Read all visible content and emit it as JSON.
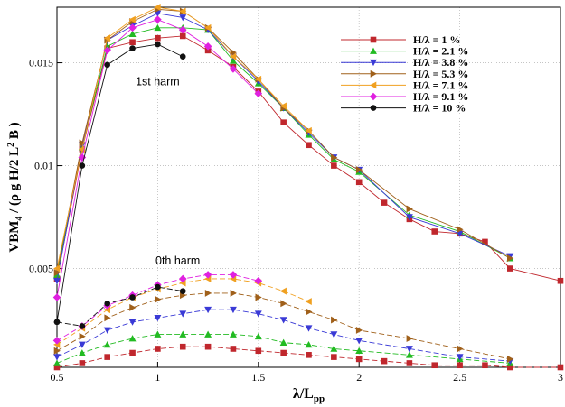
{
  "chart_data": {
    "type": "line",
    "xlabel": {
      "main": "λ/L",
      "sub": "pp"
    },
    "ylabel": {
      "a": "VBM",
      "a_sub": "4",
      "b": " / (ρ g H/2 L",
      "b_sup": "2",
      "c": " B )"
    },
    "xlim": [
      0.5,
      3
    ],
    "ylim": [
      0.0002,
      0.0177
    ],
    "x_ticks": [
      0.5,
      1,
      1.5,
      2,
      2.5,
      3
    ],
    "x_tick_labels": [
      "0.5",
      "1",
      "1.5",
      "2",
      "2.5",
      "3"
    ],
    "y_ticks": [
      0.005,
      0.01,
      0.015
    ],
    "y_tick_labels": [
      "0.005",
      "0.01",
      "0.015"
    ],
    "grid": true,
    "legend_position": "top-right",
    "annotations": [
      {
        "text": "1st harm",
        "x": 1.0,
        "y": 0.0139
      },
      {
        "text": "0th harm",
        "x": 1.1,
        "y": 0.0052
      }
    ],
    "series": [
      {
        "name": "H/λ = 1 %",
        "color": "#c0272d",
        "marker": "square",
        "first_harm": {
          "x": [
            0.5,
            0.625,
            0.75,
            0.875,
            1.0,
            1.125,
            1.25,
            1.375,
            1.5,
            1.625,
            1.75,
            1.875,
            2.0,
            2.125,
            2.25,
            2.375,
            2.5,
            2.625,
            2.75,
            3.0
          ],
          "y": [
            0.0045,
            0.0108,
            0.0157,
            0.016,
            0.0162,
            0.0163,
            0.0156,
            0.0148,
            0.0136,
            0.0121,
            0.011,
            0.01,
            0.0092,
            0.0082,
            0.0074,
            0.0068,
            0.0067,
            0.0063,
            0.005,
            0.0044
          ]
        },
        "zeroth_harm": {
          "x": [
            0.5,
            0.625,
            0.75,
            0.875,
            1.0,
            1.125,
            1.25,
            1.375,
            1.5,
            1.625,
            1.75,
            1.875,
            2.0,
            2.125,
            2.25,
            2.375,
            2.5,
            2.625,
            2.75,
            3.0
          ],
          "y": [
            0.0002,
            0.0004,
            0.0007,
            0.0009,
            0.0011,
            0.0012,
            0.0012,
            0.0011,
            0.001,
            0.0009,
            0.0008,
            0.0007,
            0.0006,
            0.0005,
            0.0004,
            0.0003,
            0.0003,
            0.0003,
            0.0002,
            0.0002
          ]
        }
      },
      {
        "name": "H/λ = 2.1 %",
        "color": "#22bb22",
        "marker": "triangle-up",
        "first_harm": {
          "x": [
            0.5,
            0.625,
            0.75,
            0.875,
            1.0,
            1.125,
            1.25,
            1.375,
            1.5,
            1.625,
            1.75,
            1.875,
            2.0,
            2.25,
            2.5,
            2.75
          ],
          "y": [
            0.0047,
            0.0109,
            0.0158,
            0.0164,
            0.0167,
            0.0167,
            0.0166,
            0.0151,
            0.014,
            0.0128,
            0.0115,
            0.0103,
            0.0097,
            0.0076,
            0.0068,
            0.0055
          ]
        },
        "zeroth_harm": {
          "x": [
            0.5,
            0.625,
            0.75,
            0.875,
            1.0,
            1.125,
            1.25,
            1.375,
            1.5,
            1.625,
            1.75,
            1.875,
            2.0,
            2.25,
            2.5,
            2.75
          ],
          "y": [
            0.0004,
            0.0009,
            0.0013,
            0.0016,
            0.0018,
            0.0018,
            0.0018,
            0.0018,
            0.0017,
            0.0014,
            0.0013,
            0.0011,
            0.001,
            0.0008,
            0.0006,
            0.0004
          ]
        }
      },
      {
        "name": "H/λ = 3.8 %",
        "color": "#3a3ad6",
        "marker": "triangle-down",
        "first_harm": {
          "x": [
            0.5,
            0.625,
            0.75,
            0.875,
            1.0,
            1.125,
            1.25,
            1.375,
            1.5,
            1.625,
            1.75,
            1.875,
            2.0,
            2.25,
            2.5,
            2.75
          ],
          "y": [
            0.0044,
            0.011,
            0.0161,
            0.0168,
            0.0174,
            0.0172,
            0.0166,
            0.0153,
            0.0141,
            0.0128,
            0.0116,
            0.0104,
            0.0098,
            0.0075,
            0.0067,
            0.0056
          ]
        },
        "zeroth_harm": {
          "x": [
            0.5,
            0.625,
            0.75,
            0.875,
            1.0,
            1.125,
            1.25,
            1.375,
            1.5,
            1.625,
            1.75,
            1.875,
            2.0,
            2.25,
            2.5,
            2.75
          ],
          "y": [
            0.0007,
            0.0013,
            0.002,
            0.0024,
            0.0026,
            0.0028,
            0.003,
            0.003,
            0.0028,
            0.0025,
            0.0021,
            0.0018,
            0.0015,
            0.0011,
            0.0007,
            0.0005
          ]
        }
      },
      {
        "name": "H/λ = 5.3 %",
        "color": "#a0601a",
        "marker": "triangle-right",
        "first_harm": {
          "x": [
            0.5,
            0.625,
            0.75,
            0.875,
            1.0,
            1.125,
            1.25,
            1.375,
            1.5,
            1.625,
            1.75,
            1.875,
            2.0,
            2.25,
            2.5,
            2.75
          ],
          "y": [
            0.0048,
            0.0111,
            0.0161,
            0.017,
            0.0176,
            0.0175,
            0.0167,
            0.0155,
            0.0142,
            0.0128,
            0.0117,
            0.0104,
            0.0098,
            0.0079,
            0.0069,
            0.0055
          ]
        },
        "zeroth_harm": {
          "x": [
            0.5,
            0.625,
            0.75,
            0.875,
            1.0,
            1.125,
            1.25,
            1.375,
            1.5,
            1.625,
            1.75,
            1.875,
            2.0,
            2.25,
            2.5,
            2.75
          ],
          "y": [
            0.001,
            0.0017,
            0.0026,
            0.0031,
            0.0035,
            0.0037,
            0.0038,
            0.0038,
            0.0036,
            0.0033,
            0.0029,
            0.0025,
            0.002,
            0.0016,
            0.0011,
            0.0006
          ]
        }
      },
      {
        "name": "H/λ = 7.1 %",
        "color": "#f0a020",
        "marker": "triangle-left",
        "first_harm": {
          "x": [
            0.5,
            0.625,
            0.75,
            0.875,
            1.0,
            1.125,
            1.25,
            1.375,
            1.5,
            1.625,
            1.75
          ],
          "y": [
            0.005,
            0.0108,
            0.0162,
            0.0171,
            0.0177,
            0.0175,
            0.0167,
            0.0153,
            0.0142,
            0.0129,
            0.0117
          ]
        },
        "zeroth_harm": {
          "x": [
            0.5,
            0.625,
            0.75,
            0.875,
            1.0,
            1.125,
            1.25,
            1.375,
            1.5,
            1.625,
            1.75
          ],
          "y": [
            0.0013,
            0.0021,
            0.003,
            0.0036,
            0.004,
            0.0043,
            0.0045,
            0.0045,
            0.0043,
            0.0039,
            0.0034
          ]
        }
      },
      {
        "name": "H/λ = 9.1 %",
        "color": "#e020e0",
        "marker": "diamond",
        "first_harm": {
          "x": [
            0.5,
            0.625,
            0.75,
            0.875,
            1.0,
            1.125,
            1.25,
            1.375,
            1.5
          ],
          "y": [
            0.0036,
            0.0104,
            0.0156,
            0.0167,
            0.0171,
            0.0166,
            0.0158,
            0.0147,
            0.0135
          ]
        },
        "zeroth_harm": {
          "x": [
            0.5,
            0.625,
            0.75,
            0.875,
            1.0,
            1.125,
            1.25,
            1.375,
            1.5
          ],
          "y": [
            0.0015,
            0.0022,
            0.0032,
            0.0037,
            0.0042,
            0.0045,
            0.0047,
            0.0047,
            0.0044
          ]
        }
      },
      {
        "name": "H/λ = 10 %",
        "color": "#111111",
        "marker": "circle",
        "first_harm": {
          "x": [
            0.5,
            0.625,
            0.75,
            0.875,
            1.0,
            1.125
          ],
          "y": [
            0.0024,
            0.01,
            0.0149,
            0.0157,
            0.0159,
            0.0153
          ]
        },
        "zeroth_harm": {
          "x": [
            0.5,
            0.625,
            0.75,
            0.875,
            1.0,
            1.125
          ],
          "y": [
            0.0024,
            0.0022,
            0.0033,
            0.0036,
            0.0041,
            0.0039
          ]
        }
      }
    ]
  }
}
